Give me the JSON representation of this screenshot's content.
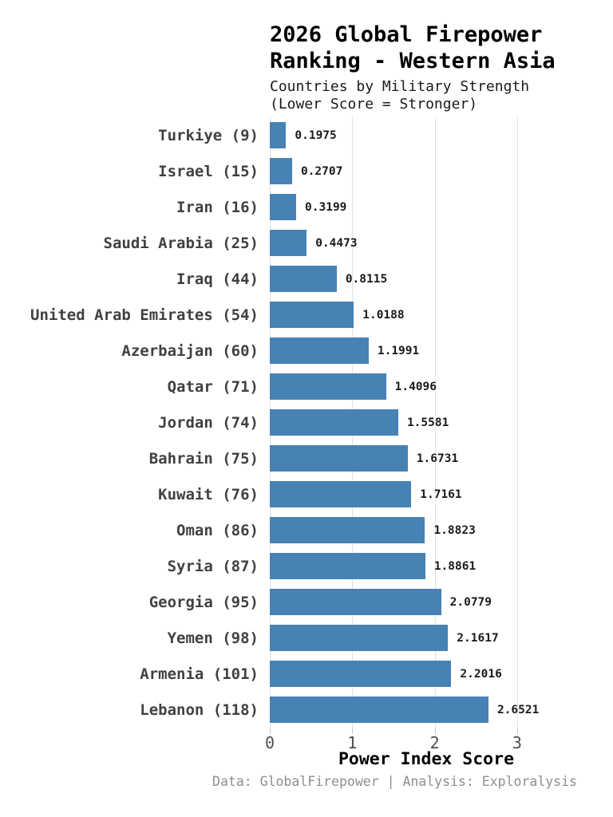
{
  "title": {
    "line1": "2026 Global Firepower",
    "line2": "Ranking - Western Asia"
  },
  "subtitle": {
    "line1": "Countries by Military Strength",
    "line2": "(Lower Score = Stronger)"
  },
  "footer": {
    "text": "Data: GlobalFirepower | Analysis: Exploralysis"
  },
  "chart_data": {
    "type": "bar",
    "orientation": "horizontal",
    "title": "2026 Global Firepower Ranking - Western Asia",
    "subtitle": "Countries by Military Strength (Lower Score = Stronger)",
    "xlabel": "Power Index Score",
    "ylabel": "",
    "categories": [
      "Turkiye (9)",
      "Israel (15)",
      "Iran (16)",
      "Saudi Arabia (25)",
      "Iraq (44)",
      "United Arab Emirates (54)",
      "Azerbaijan (60)",
      "Qatar (71)",
      "Jordan (74)",
      "Bahrain (75)",
      "Kuwait (76)",
      "Oman (86)",
      "Syria (87)",
      "Georgia (95)",
      "Yemen (98)",
      "Armenia (101)",
      "Lebanon (118)"
    ],
    "values": [
      0.1975,
      0.2707,
      0.3199,
      0.4473,
      0.8115,
      1.0188,
      1.1991,
      1.4096,
      1.5581,
      1.6731,
      1.7161,
      1.8823,
      1.8861,
      2.0779,
      2.1617,
      2.2016,
      2.6521
    ],
    "value_label_decimals": 4,
    "xticks": [
      0,
      1,
      2,
      3
    ],
    "xlim": [
      0,
      3.7
    ],
    "grid": "vertical",
    "legend": "none",
    "bar_color": "#4682B4",
    "label_color": "#404040",
    "value_color": "#1a1a1a",
    "tick_color": "#4d4d4d",
    "gridline_color": "#e2e2e2"
  }
}
